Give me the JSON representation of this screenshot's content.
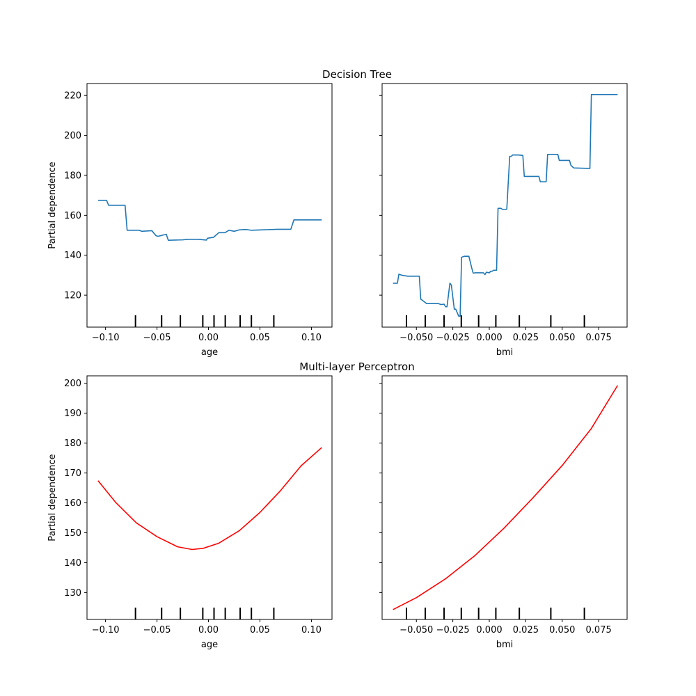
{
  "chart_data": [
    {
      "type": "line",
      "title": "Decision Tree",
      "xlabel": "age",
      "ylabel": "Partial dependence",
      "xlim": [
        -0.118,
        0.12
      ],
      "ylim": [
        104,
        226
      ],
      "xticks": [
        -0.1,
        -0.05,
        0.0,
        0.05,
        0.1
      ],
      "xtick_labels": [
        "−0.10",
        "−0.05",
        "0.00",
        "0.05",
        "0.10"
      ],
      "yticks": [
        120,
        140,
        160,
        180,
        200,
        220
      ],
      "ytick_labels": [
        "120",
        "140",
        "160",
        "180",
        "200",
        "220"
      ],
      "deciles": [
        -0.0709,
        -0.0455,
        -0.0273,
        -0.0055,
        0.0054,
        0.0163,
        0.0308,
        0.0417,
        0.0635
      ],
      "color": "#1f77b4",
      "series": [
        {
          "x": [
            -0.1072,
            -0.099,
            -0.097,
            -0.081,
            -0.079,
            -0.067,
            -0.065,
            -0.055,
            -0.051,
            -0.049,
            -0.041,
            -0.039,
            -0.025,
            -0.02,
            -0.01,
            -0.002,
            -0.001,
            0.005,
            0.01,
            0.016,
            0.02,
            0.025,
            0.03,
            0.036,
            0.042,
            0.056,
            0.063,
            0.067,
            0.08,
            0.083,
            0.11
          ],
          "y": [
            167.5,
            167.5,
            165.0,
            165.0,
            152.5,
            152.5,
            152.0,
            152.3,
            149.8,
            149.5,
            150.5,
            147.5,
            147.7,
            148.0,
            148.0,
            147.6,
            148.5,
            149.0,
            151.3,
            151.3,
            152.5,
            152.0,
            152.7,
            152.9,
            152.5,
            152.8,
            152.9,
            153.0,
            153.0,
            157.7,
            157.7
          ]
        }
      ]
    },
    {
      "type": "line",
      "title": "",
      "xlabel": "bmi",
      "ylabel": "",
      "xlim": [
        -0.0735,
        0.0945
      ],
      "ylim": [
        104,
        226
      ],
      "xticks": [
        -0.05,
        -0.025,
        0.0,
        0.025,
        0.05,
        0.075
      ],
      "xtick_labels": [
        "−0.050",
        "−0.025",
        "0.000",
        "0.025",
        "0.050",
        "0.075"
      ],
      "yticks": [
        120,
        140,
        160,
        180,
        200,
        220
      ],
      "ytick_labels": [
        "",
        "",
        "",
        "",
        "",
        ""
      ],
      "deciles": [
        -0.0568,
        -0.0439,
        -0.031,
        -0.0192,
        -0.0073,
        0.0045,
        0.0206,
        0.0422,
        0.0652
      ],
      "color": "#1f77b4",
      "series": [
        {
          "x": [
            -0.066,
            -0.063,
            -0.062,
            -0.06,
            -0.056,
            -0.051,
            -0.048,
            -0.047,
            -0.046,
            -0.043,
            -0.038,
            -0.035,
            -0.033,
            -0.031,
            -0.03,
            -0.029,
            -0.027,
            -0.026,
            -0.024,
            -0.023,
            -0.021,
            -0.02,
            -0.019,
            -0.017,
            -0.014,
            -0.012,
            -0.011,
            -0.01,
            -0.004,
            -0.003,
            -0.002,
            0.0,
            0.001,
            0.002,
            0.003,
            0.005,
            0.006,
            0.008,
            0.009,
            0.012,
            0.014,
            0.015,
            0.016,
            0.018,
            0.02,
            0.023,
            0.024,
            0.03,
            0.034,
            0.035,
            0.039,
            0.04,
            0.041,
            0.047,
            0.048,
            0.055,
            0.056,
            0.058,
            0.068,
            0.069,
            0.07,
            0.088
          ],
          "y": [
            126.0,
            126.0,
            130.5,
            130.0,
            129.5,
            129.5,
            129.5,
            118.0,
            117.5,
            115.8,
            115.8,
            115.8,
            115.3,
            115.5,
            114.2,
            114.2,
            126.0,
            125.0,
            113.0,
            113.0,
            109.5,
            109.5,
            139.0,
            139.5,
            139.5,
            133.5,
            131.0,
            131.2,
            131.2,
            130.3,
            131.5,
            131.2,
            132.0,
            132.0,
            132.5,
            132.5,
            163.5,
            163.5,
            163.0,
            163.0,
            189.5,
            189.5,
            190.2,
            190.2,
            190.2,
            190.0,
            179.5,
            179.5,
            179.5,
            176.8,
            176.8,
            190.5,
            190.5,
            190.5,
            187.5,
            187.5,
            185.0,
            183.7,
            183.5,
            183.5,
            220.5,
            220.5
          ]
        }
      ]
    },
    {
      "type": "line",
      "title": "Multi-layer Perceptron",
      "xlabel": "age",
      "ylabel": "Partial dependence",
      "xlim": [
        -0.118,
        0.12
      ],
      "ylim": [
        121.0,
        202.5
      ],
      "xticks": [
        -0.1,
        -0.05,
        0.0,
        0.05,
        0.1
      ],
      "xtick_labels": [
        "−0.10",
        "−0.05",
        "0.00",
        "0.05",
        "0.10"
      ],
      "yticks": [
        130,
        140,
        150,
        160,
        170,
        180,
        190,
        200
      ],
      "ytick_labels": [
        "130",
        "140",
        "150",
        "160",
        "170",
        "180",
        "190",
        "200"
      ],
      "deciles": [
        -0.0709,
        -0.0455,
        -0.0273,
        -0.0055,
        0.0054,
        0.0163,
        0.0308,
        0.0417,
        0.0635
      ],
      "color": "#ff0000",
      "series": [
        {
          "x": [
            -0.1072,
            -0.09,
            -0.07,
            -0.05,
            -0.03,
            -0.016,
            -0.005,
            0.01,
            0.03,
            0.05,
            0.07,
            0.09,
            0.11
          ],
          "y": [
            167.4,
            160.1,
            153.3,
            148.7,
            145.3,
            144.4,
            144.8,
            146.5,
            150.7,
            156.8,
            164.1,
            172.4,
            178.5
          ]
        }
      ]
    },
    {
      "type": "line",
      "title": "",
      "xlabel": "bmi",
      "ylabel": "",
      "xlim": [
        -0.0735,
        0.0945
      ],
      "ylim": [
        121.0,
        202.5
      ],
      "xticks": [
        -0.05,
        -0.025,
        0.0,
        0.025,
        0.05,
        0.075
      ],
      "xtick_labels": [
        "−0.050",
        "−0.025",
        "0.000",
        "0.025",
        "0.050",
        "0.075"
      ],
      "yticks": [
        130,
        140,
        150,
        160,
        170,
        180,
        190,
        200
      ],
      "ytick_labels": [
        "",
        "",
        "",
        "",
        "",
        "",
        "",
        ""
      ],
      "deciles": [
        -0.0568,
        -0.0439,
        -0.031,
        -0.0192,
        -0.0073,
        0.0045,
        0.0206,
        0.0422,
        0.0652
      ],
      "color": "#ff0000",
      "series": [
        {
          "x": [
            -0.066,
            -0.05,
            -0.03,
            -0.01,
            0.01,
            0.03,
            0.05,
            0.07,
            0.088
          ],
          "y": [
            124.3,
            128.3,
            134.6,
            142.3,
            151.5,
            161.7,
            172.5,
            184.9,
            199.3
          ]
        }
      ]
    }
  ]
}
